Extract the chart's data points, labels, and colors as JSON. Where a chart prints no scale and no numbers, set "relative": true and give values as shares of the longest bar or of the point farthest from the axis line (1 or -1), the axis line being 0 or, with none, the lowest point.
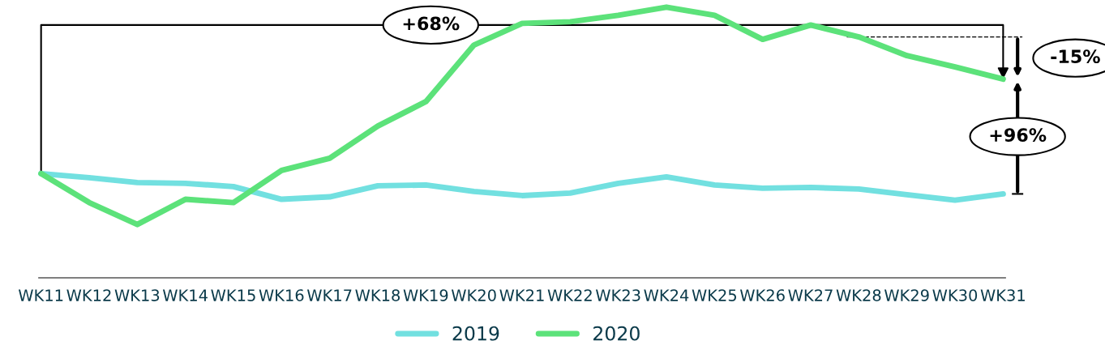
{
  "chart_data": {
    "type": "line",
    "relative": true,
    "categories": [
      "WK11",
      "WK12",
      "WK13",
      "WK14",
      "WK15",
      "WK16",
      "WK17",
      "WK18",
      "WK19",
      "WK20",
      "WK21",
      "WK22",
      "WK23",
      "WK24",
      "WK25",
      "WK26",
      "WK27",
      "WK28",
      "WK29",
      "WK30",
      "WK31"
    ],
    "series": [
      {
        "name": "2019",
        "color": "#72e0e0",
        "values": [
          0.385,
          0.37,
          0.352,
          0.349,
          0.337,
          0.29,
          0.299,
          0.34,
          0.343,
          0.319,
          0.304,
          0.313,
          0.349,
          0.373,
          0.343,
          0.331,
          0.334,
          0.328,
          0.307,
          0.287,
          0.31
        ]
      },
      {
        "name": "2020",
        "color": "#5ce27a",
        "values": [
          0.385,
          0.278,
          0.197,
          0.29,
          0.278,
          0.397,
          0.442,
          0.561,
          0.651,
          0.86,
          0.94,
          0.946,
          0.97,
          1.0,
          0.97,
          0.881,
          0.934,
          0.89,
          0.821,
          0.779,
          0.734
        ]
      }
    ],
    "annotations": [
      "+68%",
      "-15%",
      "+96%"
    ],
    "legend": "bottom",
    "grid": false,
    "marker": "none",
    "line_style": "solid"
  }
}
